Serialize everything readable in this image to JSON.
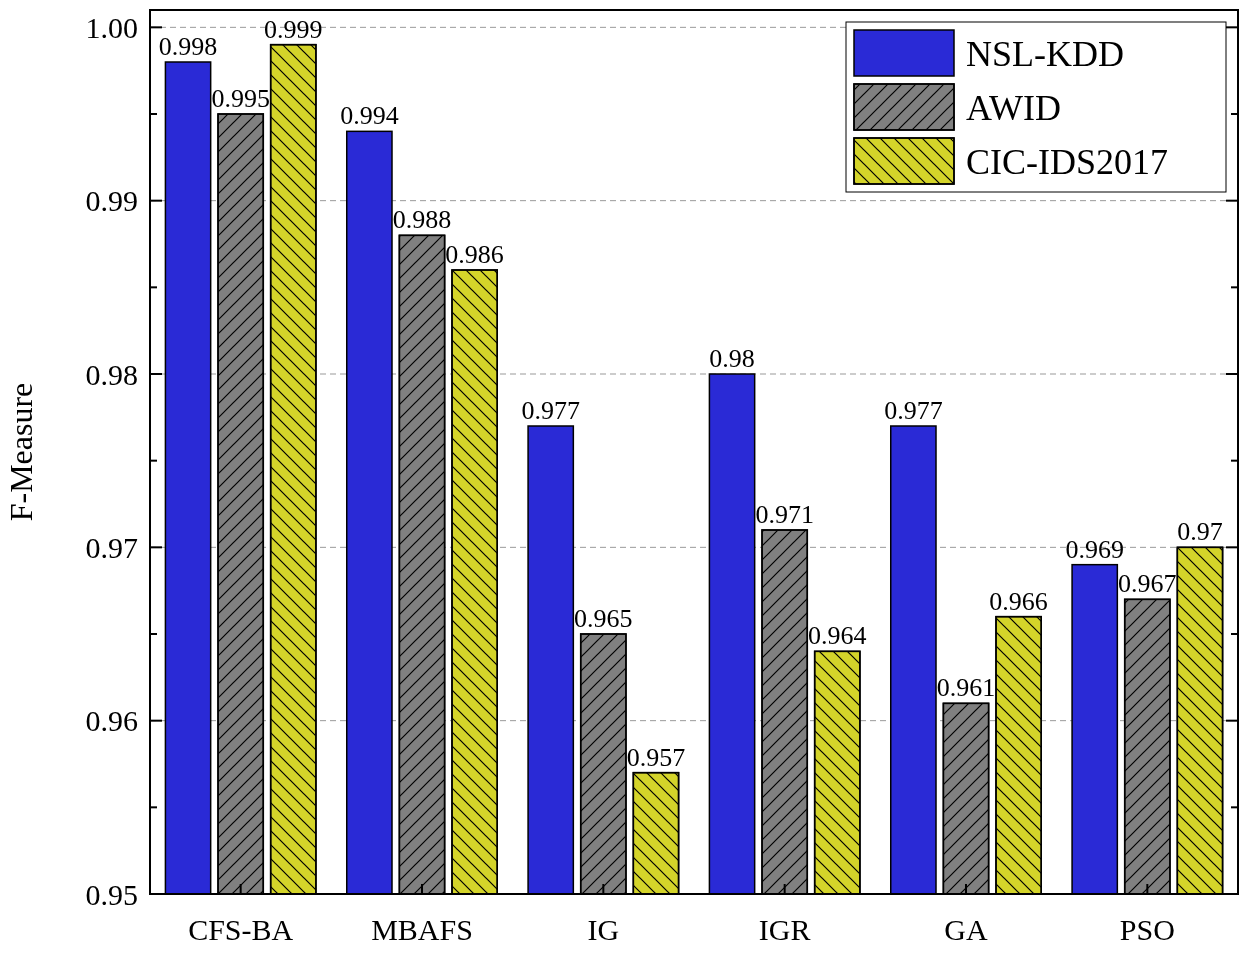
{
  "chart_data": {
    "type": "bar",
    "ylabel": "F-Measure",
    "categories": [
      "CFS-BA",
      "MBAFS",
      "IG",
      "IGR",
      "GA",
      "PSO"
    ],
    "series": [
      {
        "name": "NSL-KDD",
        "color": "#2a2ad6",
        "values": [
          0.998,
          0.994,
          0.977,
          0.98,
          0.977,
          0.969
        ]
      },
      {
        "name": "AWID",
        "color": "#808080",
        "values": [
          0.995,
          0.988,
          0.965,
          0.971,
          0.961,
          0.967
        ]
      },
      {
        "name": "CIC-IDS2017",
        "color": "#d4d42a",
        "values": [
          0.999,
          0.986,
          0.957,
          0.964,
          0.966,
          0.97
        ]
      }
    ],
    "ylim": [
      0.95,
      1.001
    ],
    "yticks": [
      {
        "value": 0.95,
        "label": "0.95"
      },
      {
        "value": 0.955,
        "label": null
      },
      {
        "value": 0.96,
        "label": "0.96"
      },
      {
        "value": 0.965,
        "label": null
      },
      {
        "value": 0.97,
        "label": "0.97"
      },
      {
        "value": 0.975,
        "label": null
      },
      {
        "value": 0.98,
        "label": "0.98"
      },
      {
        "value": 0.985,
        "label": null
      },
      {
        "value": 0.99,
        "label": "0.99"
      },
      {
        "value": 0.995,
        "label": null
      },
      {
        "value": 1,
        "label": "1.00"
      }
    ],
    "grid": "y",
    "legend": "top right",
    "data_labels": true
  }
}
